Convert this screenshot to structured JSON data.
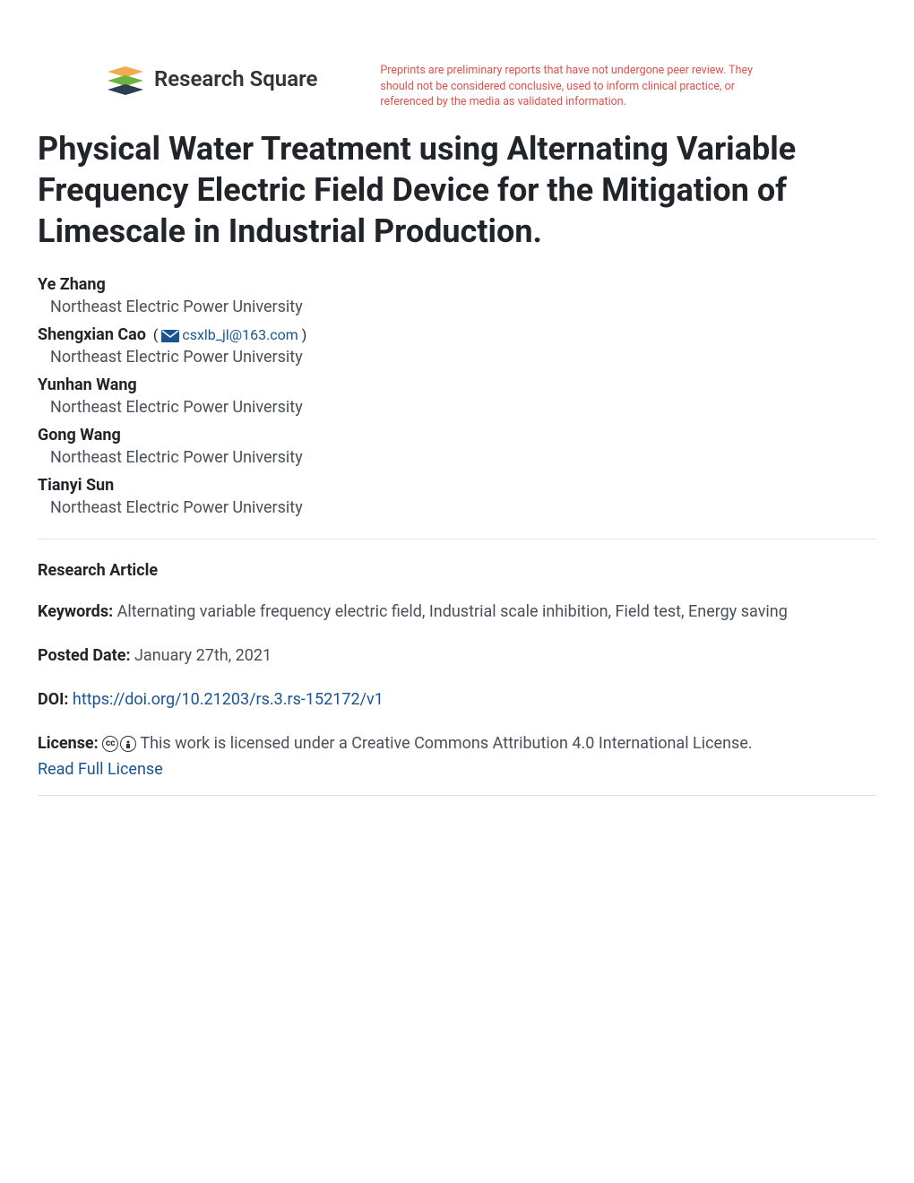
{
  "header": {
    "logo_text": "Research Square",
    "disclaimer": "Preprints are preliminary reports that have not undergone peer review. They should not be considered conclusive, used to inform clinical practice, or referenced by the media as validated information."
  },
  "title": "Physical Water Treatment using Alternating Variable Frequency Electric Field Device for the Mitigation of Limescale in Industrial Production.",
  "authors": [
    {
      "name": "Ye Zhang",
      "affiliation": "Northeast Electric Power University",
      "email": null
    },
    {
      "name": "Shengxian Cao",
      "affiliation": "Northeast Electric Power University",
      "email": "csxlb_jl@163.com"
    },
    {
      "name": "Yunhan Wang",
      "affiliation": "Northeast Electric Power University",
      "email": null
    },
    {
      "name": "Gong Wang",
      "affiliation": "Northeast Electric Power University",
      "email": null
    },
    {
      "name": "Tianyi Sun",
      "affiliation": "Northeast Electric Power University",
      "email": null
    }
  ],
  "article_type": "Research Article",
  "keywords_label": "Keywords:",
  "keywords": "Alternating variable frequency electric field, Industrial scale inhibition, Field test, Energy saving",
  "posted_label": "Posted Date:",
  "posted_date": "January 27th, 2021",
  "doi_label": "DOI:",
  "doi_url": "https://doi.org/10.21203/rs.3.rs-152172/v1",
  "license_label": "License:",
  "license_text": "This work is licensed under a Creative Commons Attribution 4.0 International License.",
  "license_link": "Read Full License",
  "colors": {
    "text": "#212529",
    "muted": "#495057",
    "link": "#1a5490",
    "disclaimer": "#d9534f",
    "border": "#dee2e6",
    "logo_green": "#6db33f",
    "logo_yellow": "#f0ad4e",
    "logo_dark": "#2c3e50"
  }
}
